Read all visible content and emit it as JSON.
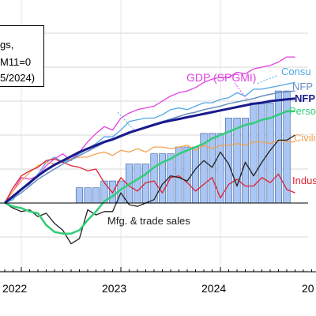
{
  "chart_data": {
    "type": "line",
    "title": "",
    "xlabel": "",
    "ylabel": "",
    "legend_box_fragments": [
      "gs,",
      "M11=0",
      "5/2024)"
    ],
    "x_ticks": [
      "2022",
      "2023",
      "2024",
      "20"
    ],
    "months": [
      "2021-11",
      "2021-12",
      "2022-01",
      "2022-02",
      "2022-03",
      "2022-04",
      "2022-05",
      "2022-06",
      "2022-07",
      "2022-08",
      "2022-09",
      "2022-10",
      "2022-11",
      "2022-12",
      "2023-01",
      "2023-02",
      "2023-03",
      "2023-04",
      "2023-05",
      "2023-06",
      "2023-07",
      "2023-08",
      "2023-09",
      "2023-10",
      "2023-11",
      "2023-12",
      "2024-01",
      "2024-02",
      "2024-03",
      "2024-04",
      "2024-05",
      "2024-06",
      "2024-07",
      "2024-08",
      "2024-09",
      "2024-10"
    ],
    "series": [
      {
        "name": "NFP",
        "color": "#1a1a8c",
        "width": 3,
        "values": [
          0.0,
          0.4,
          0.8,
          1.2,
          1.6,
          1.95,
          2.25,
          2.5,
          2.75,
          3.0,
          3.2,
          3.4,
          3.6,
          3.75,
          3.95,
          4.15,
          4.3,
          4.45,
          4.6,
          4.75,
          4.85,
          4.95,
          5.05,
          5.15,
          5.25,
          5.35,
          5.45,
          5.55,
          5.65,
          5.75,
          5.85,
          5.9,
          6.0,
          6.05,
          6.1,
          6.15
        ]
      },
      {
        "name": "NFP",
        "color": "#6a8fbf",
        "width": 1.5,
        "values": [
          0.0,
          0.3,
          0.6,
          1.0,
          1.4,
          1.7,
          2.0,
          2.3,
          2.55,
          2.8,
          3.05,
          3.3,
          3.55,
          3.7,
          3.9,
          4.1,
          4.3,
          4.5,
          4.65,
          4.8,
          4.95,
          5.1,
          5.25,
          5.35,
          5.5,
          5.6,
          5.7,
          5.85,
          5.95,
          6.05,
          6.15,
          6.3,
          6.4,
          6.5,
          6.55,
          6.6
        ]
      },
      {
        "name": "Consu",
        "color": "#4fa6e6",
        "width": 1.3,
        "values": [
          0.0,
          0.2,
          0.8,
          1.1,
          1.7,
          2.4,
          2.7,
          2.4,
          2.6,
          2.9,
          3.2,
          3.5,
          3.9,
          3.9,
          4.3,
          4.8,
          4.9,
          5.0,
          5.0,
          5.2,
          5.5,
          5.6,
          5.5,
          5.7,
          5.9,
          5.9,
          6.1,
          6.2,
          6.5,
          6.3,
          6.7,
          6.7,
          6.8,
          6.9,
          7.0,
          7.1
        ]
      },
      {
        "name": "GDP (SPGMI)",
        "color": "#e040e0",
        "width": 1.3,
        "values": [
          0.0,
          0.7,
          1.5,
          1.4,
          1.6,
          2.2,
          2.6,
          2.9,
          2.5,
          3.0,
          3.6,
          4.1,
          4.5,
          4.3,
          5.0,
          5.3,
          5.5,
          5.6,
          5.7,
          6.0,
          6.3,
          6.5,
          6.6,
          6.8,
          7.1,
          7.3,
          7.4,
          7.4,
          7.7,
          7.6,
          7.9,
          8.0,
          8.1,
          8.3,
          8.6,
          8.6
        ]
      },
      {
        "name": "Person",
        "color": "#33cc77",
        "width": 2.5,
        "values": [
          0.0,
          -0.2,
          -0.3,
          -0.5,
          -0.6,
          -1.3,
          -1.7,
          -1.8,
          -1.8,
          -1.6,
          -1.0,
          -0.5,
          0.1,
          0.4,
          0.8,
          1.1,
          1.4,
          1.7,
          2.1,
          2.4,
          2.6,
          2.9,
          3.1,
          3.3,
          3.5,
          3.8,
          4.0,
          4.2,
          4.4,
          4.6,
          4.7,
          4.9,
          5.0,
          5.2,
          5.4,
          5.4
        ]
      },
      {
        "name": "Civili",
        "color": "#f5a050",
        "width": 1.3,
        "values": [
          0.0,
          0.7,
          1.3,
          1.8,
          2.2,
          2.4,
          2.3,
          2.5,
          2.6,
          2.7,
          2.7,
          2.9,
          3.0,
          2.8,
          3.1,
          3.0,
          3.2,
          3.0,
          3.3,
          3.3,
          3.2,
          3.3,
          3.4,
          3.1,
          3.4,
          3.2,
          3.4,
          3.4,
          3.5,
          3.4,
          3.6,
          3.6,
          3.5,
          3.7,
          3.6,
          3.6
        ]
      },
      {
        "name": "Indus",
        "color": "#e0202f",
        "width": 1.3,
        "values": [
          0.0,
          0.9,
          1.6,
          1.9,
          2.1,
          2.5,
          2.6,
          2.4,
          2.2,
          2.1,
          1.9,
          2.0,
          1.2,
          0.6,
          1.5,
          1.0,
          0.7,
          1.2,
          1.3,
          0.6,
          1.5,
          1.6,
          1.2,
          0.7,
          1.1,
          1.5,
          0.3,
          1.1,
          1.4,
          1.0,
          1.0,
          1.5,
          1.2,
          1.7,
          0.8,
          0.6
        ]
      },
      {
        "name": "Mfg. & trade sales",
        "color": "#222222",
        "width": 1.3,
        "values": [
          0.0,
          -0.3,
          -0.5,
          -0.4,
          -0.8,
          -0.6,
          -1.2,
          -1.6,
          -2.4,
          -2.1,
          -0.4,
          -0.7,
          -0.5,
          -0.5,
          0.6,
          -0.1,
          -0.2,
          0.0,
          0.2,
          1.1,
          1.6,
          1.5,
          1.3,
          2.0,
          2.5,
          2.1,
          3.0,
          2.3,
          1.0,
          2.4,
          1.6,
          2.4,
          3.1,
          3.7,
          3.7,
          4.0
        ]
      }
    ],
    "bars": {
      "name": "Mfg. & trade sales",
      "color": "#a9c6f4",
      "values": [
        null,
        null,
        null,
        null,
        null,
        null,
        null,
        null,
        null,
        0.9,
        0.9,
        0.9,
        1.3,
        1.3,
        1.3,
        2.3,
        2.3,
        2.3,
        2.9,
        2.9,
        2.9,
        3.3,
        3.3,
        3.3,
        4.1,
        4.1,
        4.1,
        5.0,
        5.0,
        5.0,
        5.9,
        5.9,
        5.9,
        6.6,
        6.6,
        null
      ]
    },
    "series_labels": [
      {
        "text": "GDP (SPGMI)",
        "color": "#e040e0",
        "bold": false
      },
      {
        "text": "Consu",
        "color": "#4fa6e6",
        "bold": false
      },
      {
        "text": "NFP",
        "color": "#6a8fbf",
        "bold": false
      },
      {
        "text": "NFP",
        "color": "#1a1a8c",
        "bold": true
      },
      {
        "text": "Person",
        "color": "#33cc77",
        "bold": false
      },
      {
        "text": "Civili",
        "color": "#f5a050",
        "bold": false
      },
      {
        "text": "Indus",
        "color": "#e0202f",
        "bold": false
      },
      {
        "text": "Mfg. & trade sales",
        "color": "#222222",
        "bold": false
      }
    ],
    "grid": true,
    "zero_line": true,
    "legend": "top-left"
  }
}
